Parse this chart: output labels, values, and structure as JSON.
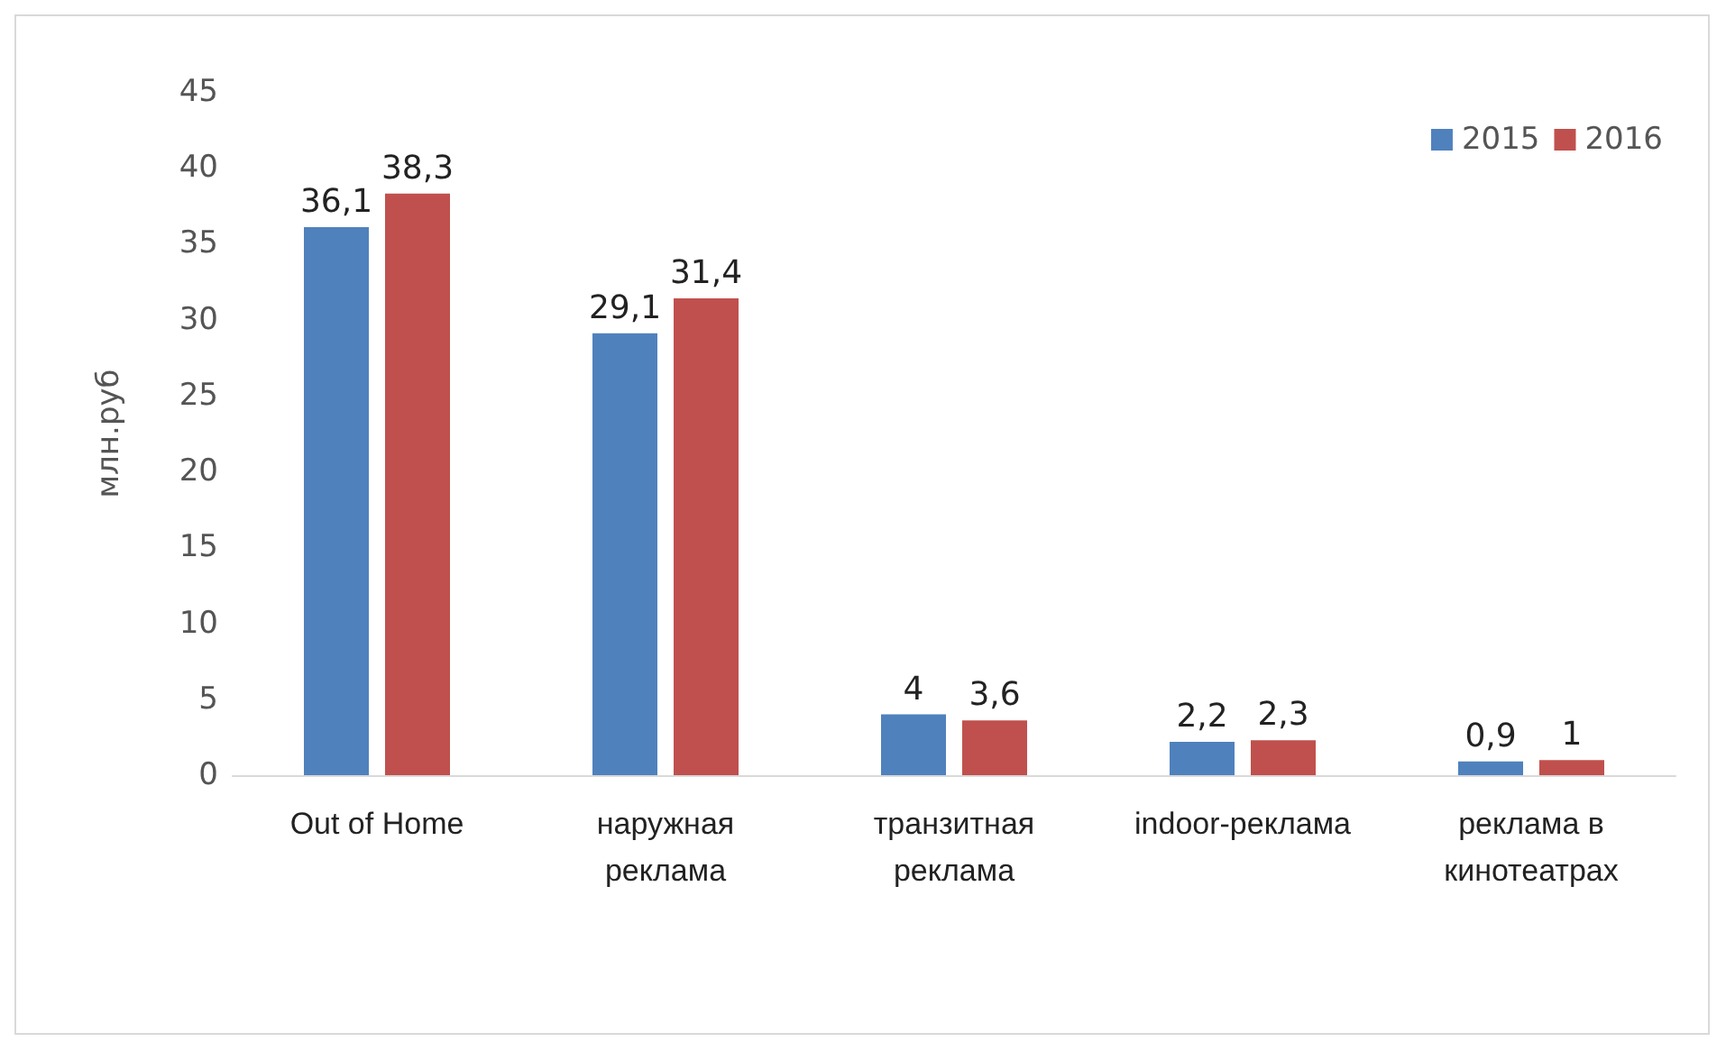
{
  "chart_data": {
    "type": "bar",
    "ylabel": "млн.руб",
    "categories": [
      "Out of Home",
      "наружная реклама",
      "транзитная реклама",
      "indoor-реклама",
      "реклама в кинотеатрах"
    ],
    "series": [
      {
        "name": "2015",
        "color": "#4f81bd",
        "values": [
          36.1,
          29.1,
          4,
          2.2,
          0.9
        ],
        "value_labels": [
          "36,1",
          "29,1",
          "4",
          "2,2",
          "0,9"
        ]
      },
      {
        "name": "2016",
        "color": "#c0504d",
        "values": [
          38.3,
          31.4,
          3.6,
          2.3,
          1
        ],
        "value_labels": [
          "38,3",
          "31,4",
          "3,6",
          "2,3",
          "1"
        ]
      }
    ],
    "ylim": [
      0,
      45
    ],
    "yticks": [
      0,
      5,
      10,
      15,
      20,
      25,
      30,
      35,
      40,
      45
    ],
    "grid": false,
    "legend": "top right"
  }
}
